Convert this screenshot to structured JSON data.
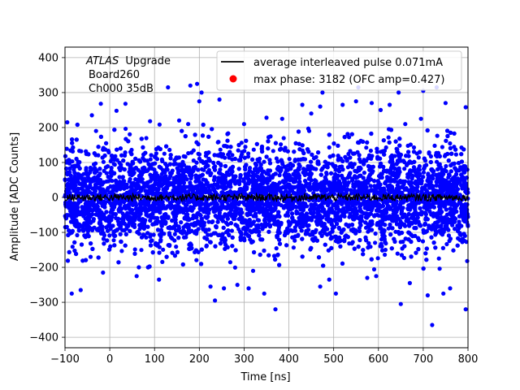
{
  "chart_data": {
    "type": "scatter",
    "title": "",
    "xlabel": "Time [ns]",
    "ylabel": "Amplitude [ADC Counts]",
    "xlim": [
      -100,
      800
    ],
    "ylim": [
      -430,
      430
    ],
    "x_ticks": [
      -100,
      0,
      100,
      200,
      300,
      400,
      500,
      600,
      700,
      800
    ],
    "y_ticks": [
      -400,
      -300,
      -200,
      -100,
      0,
      100,
      200,
      300,
      400
    ],
    "x_tick_labels": [
      "−100",
      "0",
      "100",
      "200",
      "300",
      "400",
      "500",
      "600",
      "700",
      "800"
    ],
    "y_tick_labels": [
      "−400",
      "−300",
      "−200",
      "−100",
      "0",
      "100",
      "200",
      "300",
      "400"
    ],
    "grid": true,
    "legend_position": "top-right",
    "annotation": {
      "line1_italic": "ATLAS",
      "line1_rest": "Upgrade",
      "line2": "Board260",
      "line3": "Ch000 35dB"
    },
    "series": [
      {
        "name": "average interleaved pulse 0.071mA",
        "kind": "line",
        "color": "#000000",
        "x_range": [
          -100,
          800
        ],
        "mean": 0,
        "noise_amplitude": 10
      },
      {
        "name": "max phase: 3182 (OFC amp=0.427)",
        "kind": "marker",
        "color": "#ff0000"
      },
      {
        "name": "",
        "kind": "scatter",
        "color": "#0000ff",
        "x_range": [
          -100,
          800
        ],
        "mean": 0,
        "sigma": 70,
        "n_points": 7000,
        "outliers": [
          [
            -95,
            215
          ],
          [
            -85,
            -275
          ],
          [
            -65,
            -265
          ],
          [
            -20,
            268
          ],
          [
            -15,
            -215
          ],
          [
            15,
            248
          ],
          [
            35,
            268
          ],
          [
            65,
            -200
          ],
          [
            90,
            218
          ],
          [
            130,
            315
          ],
          [
            155,
            220
          ],
          [
            175,
            210
          ],
          [
            180,
            320
          ],
          [
            195,
            325
          ],
          [
            200,
            275
          ],
          [
            205,
            300
          ],
          [
            225,
            -255
          ],
          [
            235,
            -295
          ],
          [
            245,
            280
          ],
          [
            255,
            -260
          ],
          [
            285,
            -250
          ],
          [
            300,
            210
          ],
          [
            320,
            -210
          ],
          [
            345,
            -275
          ],
          [
            350,
            228
          ],
          [
            370,
            -320
          ],
          [
            385,
            225
          ],
          [
            430,
            265
          ],
          [
            450,
            240
          ],
          [
            470,
            260
          ],
          [
            475,
            300
          ],
          [
            490,
            -235
          ],
          [
            505,
            -275
          ],
          [
            520,
            265
          ],
          [
            550,
            275
          ],
          [
            555,
            315
          ],
          [
            575,
            -230
          ],
          [
            585,
            270
          ],
          [
            595,
            -225
          ],
          [
            605,
            250
          ],
          [
            625,
            265
          ],
          [
            645,
            300
          ],
          [
            650,
            -305
          ],
          [
            670,
            -245
          ],
          [
            700,
            305
          ],
          [
            710,
            -280
          ],
          [
            720,
            -365
          ],
          [
            730,
            315
          ],
          [
            745,
            -275
          ],
          [
            750,
            270
          ],
          [
            760,
            -260
          ],
          [
            795,
            258
          ],
          [
            795,
            -320
          ],
          [
            695,
            225
          ],
          [
            660,
            210
          ],
          [
            470,
            -255
          ],
          [
            310,
            -260
          ],
          [
            60,
            -225
          ],
          [
            110,
            -235
          ],
          [
            -40,
            235
          ]
        ]
      }
    ]
  }
}
